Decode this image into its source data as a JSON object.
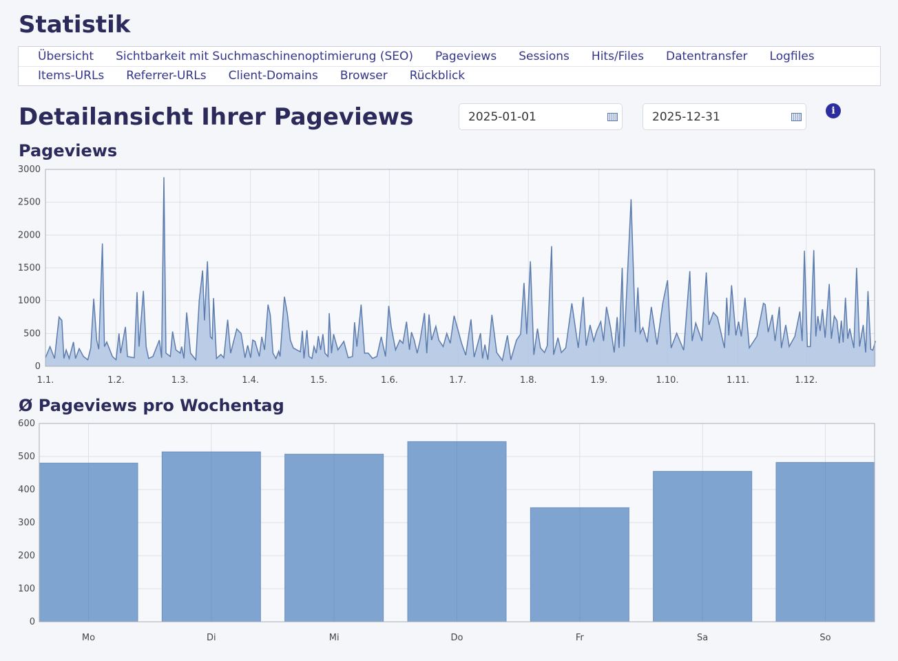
{
  "page_title": "Statistik",
  "nav": {
    "row1": [
      "Übersicht",
      "Sichtbarkeit mit Suchmaschinenoptimierung (SEO)",
      "Pageviews",
      "Sessions",
      "Hits/Files",
      "Datentransfer",
      "Logfiles"
    ],
    "row2": [
      "Items-URLs",
      "Referrer-URLs",
      "Client-Domains",
      "Browser",
      "Rückblick"
    ]
  },
  "heading": "Detailansicht Ihrer Pageviews",
  "date_from": "2025-01-01",
  "date_to": "2025-12-31",
  "info_icon": "i",
  "colors": {
    "title": "#2b2a5a",
    "line": "#5b7bad",
    "area": "#b3c7e3",
    "bar": "#80a4d0"
  },
  "chart_data": [
    {
      "type": "area",
      "title": "Pageviews",
      "xlabel": "",
      "ylabel": "",
      "ylim": [
        0,
        3000
      ],
      "xlim_days": [
        0,
        364
      ],
      "yticks": [
        "0",
        "500",
        "1000",
        "1500",
        "2000",
        "2500",
        "3000"
      ],
      "ytick_values": [
        0,
        500,
        1000,
        1500,
        2000,
        2500,
        3000
      ],
      "xticks": [
        "1.1.",
        "1.2.",
        "1.3.",
        "1.4.",
        "1.5.",
        "1.6.",
        "1.7.",
        "1.8.",
        "1.9.",
        "1.10.",
        "1.11.",
        "1.12."
      ],
      "xtick_days": [
        0,
        31,
        59,
        90,
        120,
        151,
        181,
        212,
        243,
        273,
        304,
        334
      ],
      "grid": true,
      "points_day_value": [
        [
          0,
          130
        ],
        [
          2,
          300
        ],
        [
          4,
          120
        ],
        [
          6,
          750
        ],
        [
          7.2,
          700
        ],
        [
          8.1,
          120
        ],
        [
          9.1,
          250
        ],
        [
          10.4,
          120
        ],
        [
          12.3,
          370
        ],
        [
          13.2,
          120
        ],
        [
          14.8,
          270
        ],
        [
          16.7,
          150
        ],
        [
          18.6,
          100
        ],
        [
          19.9,
          280
        ],
        [
          21.2,
          1030
        ],
        [
          22.5,
          400
        ],
        [
          23.4,
          260
        ],
        [
          25,
          1870
        ],
        [
          25.9,
          300
        ],
        [
          26.9,
          370
        ],
        [
          29.4,
          150
        ],
        [
          31,
          100
        ],
        [
          32.3,
          500
        ],
        [
          33,
          200
        ],
        [
          35.1,
          600
        ],
        [
          36,
          150
        ],
        [
          39,
          130
        ],
        [
          40.2,
          1130
        ],
        [
          41.1,
          300
        ],
        [
          43,
          1150
        ],
        [
          44.2,
          300
        ],
        [
          45.3,
          120
        ],
        [
          47.2,
          150
        ],
        [
          50,
          400
        ],
        [
          51,
          130
        ],
        [
          52,
          2880
        ],
        [
          52.9,
          200
        ],
        [
          54.8,
          150
        ],
        [
          55.8,
          530
        ],
        [
          57.3,
          250
        ],
        [
          59.2,
          200
        ],
        [
          59.8,
          300
        ],
        [
          60.8,
          120
        ],
        [
          62,
          820
        ],
        [
          63.7,
          200
        ],
        [
          66,
          100
        ],
        [
          67.5,
          1000
        ],
        [
          69,
          1460
        ],
        [
          69.8,
          700
        ],
        [
          71.1,
          1600
        ],
        [
          72.4,
          450
        ],
        [
          73.2,
          420
        ],
        [
          73.8,
          1040
        ],
        [
          75.1,
          120
        ],
        [
          77,
          180
        ],
        [
          78.3,
          130
        ],
        [
          80,
          710
        ],
        [
          81.3,
          200
        ],
        [
          84,
          570
        ],
        [
          85.9,
          500
        ],
        [
          87.6,
          130
        ],
        [
          88.8,
          320
        ],
        [
          90.1,
          130
        ],
        [
          91,
          400
        ],
        [
          92,
          380
        ],
        [
          93.9,
          150
        ],
        [
          95,
          450
        ],
        [
          96.2,
          250
        ],
        [
          97.7,
          940
        ],
        [
          98.7,
          780
        ],
        [
          99.9,
          200
        ],
        [
          101.2,
          120
        ],
        [
          102.4,
          230
        ],
        [
          103,
          150
        ],
        [
          104.9,
          1060
        ],
        [
          106.2,
          800
        ],
        [
          107.5,
          400
        ],
        [
          108.8,
          280
        ],
        [
          111.9,
          220
        ],
        [
          112.8,
          540
        ],
        [
          113.5,
          120
        ],
        [
          114.8,
          550
        ],
        [
          115.7,
          150
        ],
        [
          117,
          120
        ],
        [
          117.9,
          300
        ],
        [
          118.9,
          200
        ],
        [
          119.8,
          460
        ],
        [
          120.8,
          250
        ],
        [
          121.8,
          490
        ],
        [
          122.7,
          200
        ],
        [
          124,
          150
        ],
        [
          124.6,
          810
        ],
        [
          125.6,
          200
        ],
        [
          126.5,
          490
        ],
        [
          128.4,
          250
        ],
        [
          131,
          380
        ],
        [
          132.9,
          130
        ],
        [
          134.8,
          150
        ],
        [
          135.7,
          670
        ],
        [
          136.7,
          300
        ],
        [
          138.6,
          940
        ],
        [
          140.1,
          200
        ],
        [
          141.7,
          200
        ],
        [
          143.6,
          120
        ],
        [
          145.5,
          150
        ],
        [
          147.4,
          450
        ],
        [
          149.3,
          150
        ],
        [
          150.7,
          920
        ],
        [
          151.8,
          600
        ],
        [
          153.7,
          250
        ],
        [
          155.6,
          400
        ],
        [
          156.9,
          350
        ],
        [
          158.5,
          680
        ],
        [
          159.8,
          250
        ],
        [
          160.7,
          520
        ],
        [
          161.9,
          400
        ],
        [
          163.2,
          200
        ],
        [
          164.5,
          400
        ],
        [
          166.4,
          810
        ],
        [
          167.4,
          200
        ],
        [
          168.4,
          790
        ],
        [
          169.5,
          400
        ],
        [
          171.4,
          610
        ],
        [
          172.7,
          400
        ],
        [
          174.6,
          300
        ],
        [
          176.2,
          500
        ],
        [
          177.7,
          350
        ],
        [
          179.4,
          770
        ],
        [
          182.7,
          350
        ],
        [
          184.5,
          170
        ],
        [
          186.8,
          715
        ],
        [
          188.2,
          140
        ],
        [
          191,
          505
        ],
        [
          191.9,
          120
        ],
        [
          192.9,
          330
        ],
        [
          194.2,
          100
        ],
        [
          196,
          785
        ],
        [
          198.1,
          210
        ],
        [
          200.6,
          90
        ],
        [
          202.8,
          470
        ],
        [
          204.3,
          100
        ],
        [
          206.8,
          400
        ],
        [
          208.6,
          490
        ],
        [
          210.1,
          1270
        ],
        [
          211.3,
          490
        ],
        [
          212.9,
          1600
        ],
        [
          214.4,
          175
        ],
        [
          216,
          575
        ],
        [
          217.3,
          280
        ],
        [
          219.1,
          210
        ],
        [
          220.3,
          315
        ],
        [
          222.2,
          1830
        ],
        [
          223.1,
          175
        ],
        [
          225,
          435
        ],
        [
          226.5,
          210
        ],
        [
          228.4,
          280
        ],
        [
          231.1,
          960
        ],
        [
          233.9,
          280
        ],
        [
          236.1,
          1055
        ],
        [
          237.4,
          315
        ],
        [
          239.1,
          630
        ],
        [
          240.7,
          385
        ],
        [
          242,
          540
        ],
        [
          243.8,
          680
        ],
        [
          245,
          385
        ],
        [
          246.3,
          905
        ],
        [
          248.1,
          590
        ],
        [
          249.7,
          210
        ],
        [
          251,
          750
        ],
        [
          251.8,
          280
        ],
        [
          253.2,
          1500
        ],
        [
          254,
          300
        ],
        [
          257.1,
          2545
        ],
        [
          259,
          520
        ],
        [
          260.1,
          1200
        ],
        [
          261.1,
          505
        ],
        [
          262.3,
          590
        ],
        [
          264.2,
          365
        ],
        [
          266,
          905
        ],
        [
          268.5,
          330
        ],
        [
          271,
          960
        ],
        [
          273.1,
          1310
        ],
        [
          274.7,
          280
        ],
        [
          277.1,
          505
        ],
        [
          280.2,
          245
        ],
        [
          282.9,
          1450
        ],
        [
          283.9,
          385
        ],
        [
          285.5,
          660
        ],
        [
          288.2,
          385
        ],
        [
          290.1,
          1430
        ],
        [
          291.3,
          630
        ],
        [
          293.2,
          820
        ],
        [
          295,
          750
        ],
        [
          298.1,
          280
        ],
        [
          299.1,
          1045
        ],
        [
          300,
          470
        ],
        [
          301.2,
          1235
        ],
        [
          303.1,
          470
        ],
        [
          304.3,
          680
        ],
        [
          305.5,
          455
        ],
        [
          307.1,
          1045
        ],
        [
          309,
          280
        ],
        [
          312.3,
          455
        ],
        [
          315.2,
          960
        ],
        [
          316,
          940
        ],
        [
          317.3,
          520
        ],
        [
          319.1,
          785
        ],
        [
          320.3,
          385
        ],
        [
          322.2,
          905
        ],
        [
          323.1,
          280
        ],
        [
          325,
          630
        ],
        [
          326.5,
          300
        ],
        [
          329,
          455
        ],
        [
          331.2,
          835
        ],
        [
          332.2,
          385
        ],
        [
          333.2,
          1760
        ],
        [
          334.5,
          300
        ],
        [
          335.8,
          300
        ],
        [
          337.3,
          1770
        ],
        [
          338.2,
          455
        ],
        [
          339.1,
          765
        ],
        [
          340.1,
          540
        ],
        [
          341.1,
          870
        ],
        [
          342.3,
          435
        ],
        [
          344.1,
          1255
        ],
        [
          345,
          420
        ],
        [
          346.3,
          765
        ],
        [
          347.5,
          695
        ],
        [
          348.5,
          350
        ],
        [
          349.4,
          695
        ],
        [
          350.2,
          365
        ],
        [
          351.2,
          1045
        ],
        [
          352.2,
          420
        ],
        [
          353.1,
          575
        ],
        [
          354.9,
          280
        ],
        [
          356.1,
          1500
        ],
        [
          357.4,
          300
        ],
        [
          359,
          630
        ],
        [
          360.1,
          210
        ],
        [
          361.1,
          1145
        ],
        [
          362.3,
          260
        ],
        [
          363.2,
          245
        ],
        [
          364.4,
          385
        ]
      ]
    },
    {
      "type": "bar",
      "title": "Ø Pageviews pro Wochentag",
      "xlabel": "",
      "ylabel": "",
      "ylim": [
        0,
        600
      ],
      "yticks": [
        "0",
        "100",
        "200",
        "300",
        "400",
        "500",
        "600"
      ],
      "ytick_values": [
        0,
        100,
        200,
        300,
        400,
        500,
        600
      ],
      "categories": [
        "Mo",
        "Di",
        "Mi",
        "Do",
        "Fr",
        "Sa",
        "So"
      ],
      "values": [
        480,
        514,
        507,
        545,
        345,
        455,
        482
      ],
      "grid": true
    }
  ]
}
